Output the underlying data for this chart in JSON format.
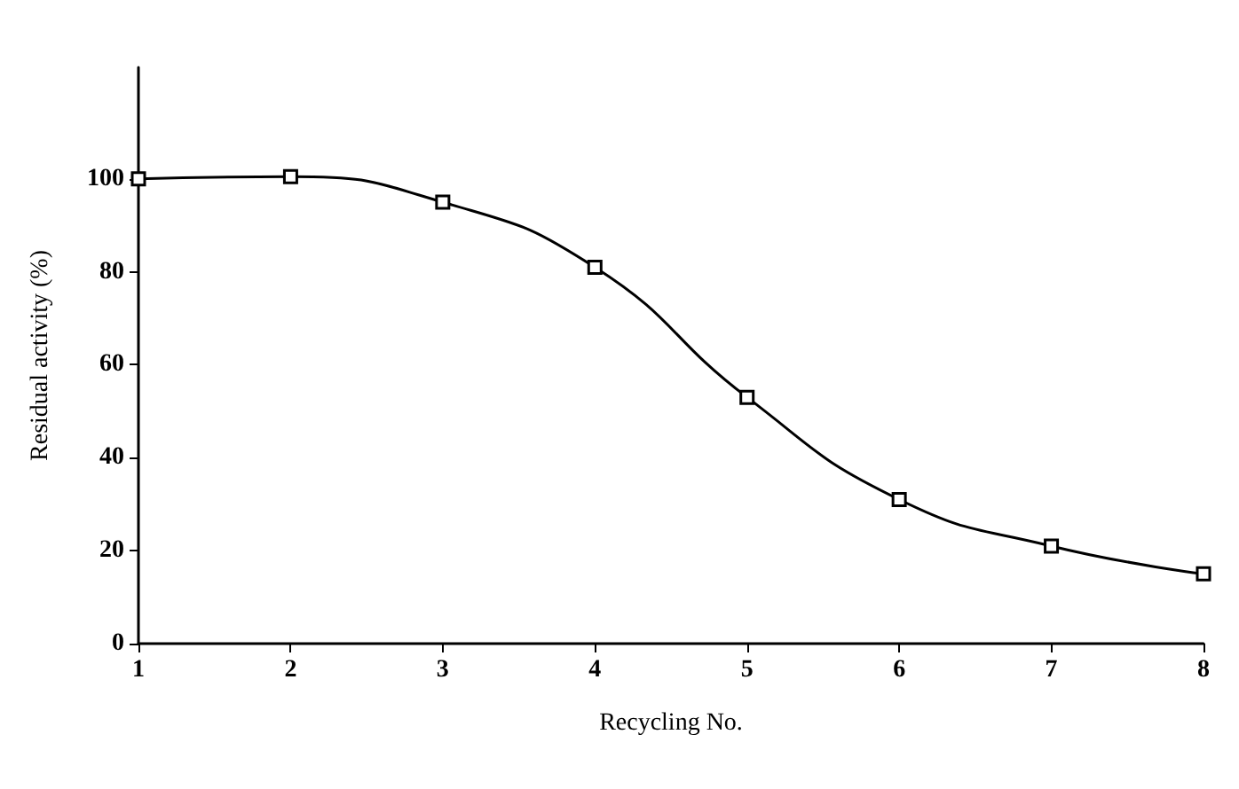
{
  "chart_data": {
    "type": "line",
    "xlabel": "Recycling No.",
    "ylabel": "Residual activity (%)",
    "x": [
      1,
      2,
      3,
      4,
      5,
      6,
      7,
      8
    ],
    "series": [
      {
        "color": "#000000",
        "values": [
          100,
          100.5,
          95,
          81,
          53,
          31,
          21,
          15
        ]
      }
    ],
    "xlim": [
      1,
      8
    ],
    "xticks": [
      1,
      2,
      3,
      4,
      5,
      6,
      7,
      8
    ],
    "ylim": [
      0,
      124
    ],
    "yticks": [
      0,
      20,
      40,
      60,
      80,
      100
    ],
    "grid": false,
    "marker": "square",
    "line_style": "solid"
  }
}
